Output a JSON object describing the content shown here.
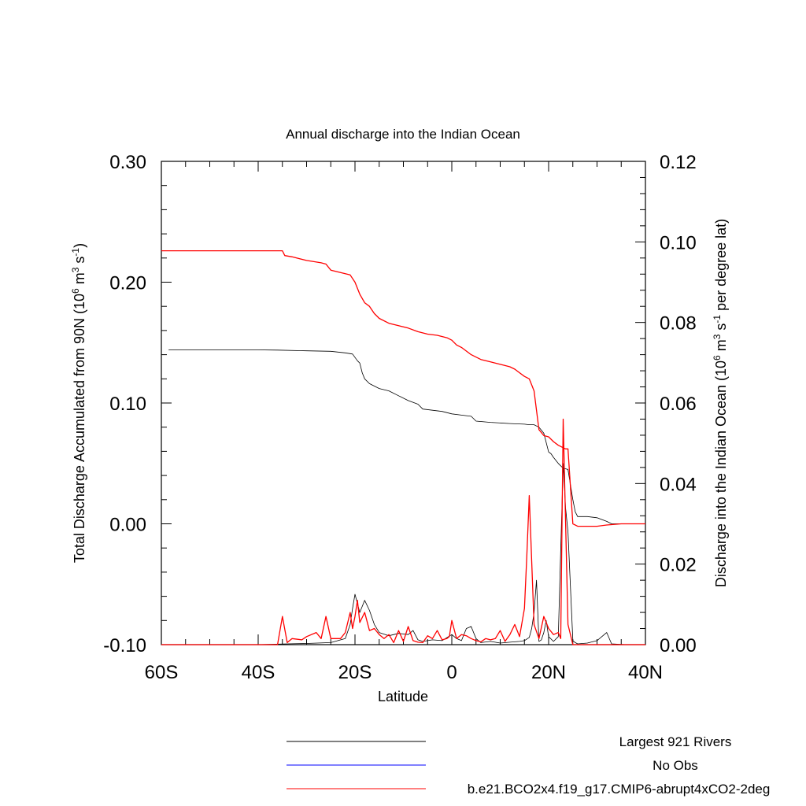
{
  "chart_data": {
    "type": "line",
    "title": "Annual discharge into the Indian Ocean",
    "xlabel": "Latitude",
    "ylabel_left": {
      "text": "Total Discharge Accumulated from 90N (10",
      "sup1": "6",
      "mid": " m",
      "sup2": "3",
      "mid2": " s",
      "sup3": "-1",
      "end": ")"
    },
    "ylabel_right": {
      "text": "Discharge into the Indian Ocean (10",
      "sup1": "6",
      "mid": " m",
      "sup2": "3",
      "mid2": " s",
      "sup3": "-1",
      "end": " per degree lat)"
    },
    "xlim": [
      -60,
      40
    ],
    "ylim_left": [
      -0.1,
      0.3
    ],
    "ylim_right": [
      0.0,
      0.12
    ],
    "x_ticks": [
      {
        "value": -60,
        "label": "60S"
      },
      {
        "value": -40,
        "label": "40S"
      },
      {
        "value": -20,
        "label": "20S"
      },
      {
        "value": 0,
        "label": "0"
      },
      {
        "value": 20,
        "label": "20N"
      },
      {
        "value": 40,
        "label": "40N"
      }
    ],
    "y_ticks_left": [
      {
        "value": -0.1,
        "label": "-0.10"
      },
      {
        "value": 0.0,
        "label": "0.00"
      },
      {
        "value": 0.1,
        "label": "0.10"
      },
      {
        "value": 0.2,
        "label": "0.20"
      },
      {
        "value": 0.3,
        "label": "0.30"
      }
    ],
    "y_ticks_right": [
      {
        "value": 0.0,
        "label": "0.00"
      },
      {
        "value": 0.02,
        "label": "0.02"
      },
      {
        "value": 0.04,
        "label": "0.04"
      },
      {
        "value": 0.06,
        "label": "0.06"
      },
      {
        "value": 0.08,
        "label": "0.08"
      },
      {
        "value": 0.1,
        "label": "0.10"
      },
      {
        "value": 0.12,
        "label": "0.12"
      }
    ],
    "series": [
      {
        "name": "Largest 921 Rivers",
        "color": "#000000",
        "axis": "left",
        "kind": "accumulated",
        "x": [
          -58.5,
          -40,
          -36,
          -30,
          -25,
          -22,
          -20.5,
          -19.5,
          -19,
          -18.5,
          -18,
          -17,
          -15,
          -13,
          -11,
          -9,
          -7,
          -6,
          -4,
          -2,
          0,
          2,
          4,
          5,
          8,
          12,
          15,
          16,
          17,
          18,
          19,
          20,
          20.5,
          21,
          22,
          23,
          24,
          25,
          25.5,
          26,
          28,
          30,
          32,
          33,
          36,
          40
        ],
        "values": [
          0.144,
          0.144,
          0.1438,
          0.1432,
          0.1428,
          0.1415,
          0.1405,
          0.135,
          0.133,
          0.125,
          0.12,
          0.116,
          0.112,
          0.11,
          0.106,
          0.102,
          0.099,
          0.095,
          0.094,
          0.093,
          0.091,
          0.09,
          0.089,
          0.085,
          0.084,
          0.083,
          0.0825,
          0.082,
          0.082,
          0.08,
          0.075,
          0.0595,
          0.058,
          0.055,
          0.05,
          0.046,
          0.045,
          0.02,
          0.01,
          0.006,
          0.006,
          0.005,
          0.002,
          0.0,
          0.0,
          0.0
        ]
      },
      {
        "name": "Largest 921 Rivers",
        "color": "#000000",
        "axis": "right",
        "kind": "per-degree",
        "x": [
          -58.5,
          -40,
          -34,
          -30,
          -25,
          -22,
          -21,
          -20.5,
          -20,
          -19,
          -18.5,
          -18,
          -17,
          -16,
          -15,
          -13,
          -11,
          -9,
          -8,
          -7,
          -6,
          -4,
          -2,
          0,
          1,
          2,
          3,
          4,
          5,
          6,
          8,
          10,
          12,
          14,
          15,
          16,
          16.5,
          17,
          17.5,
          18,
          18.5,
          19,
          19.5,
          20,
          21,
          22,
          23,
          23.5,
          24,
          25,
          25.5,
          26,
          28,
          30,
          31,
          32,
          33,
          36,
          40
        ],
        "values": [
          0,
          0,
          0.0002,
          0.0003,
          0.0005,
          0.0015,
          0.005,
          0.009,
          0.0125,
          0.008,
          0.0095,
          0.011,
          0.0085,
          0.005,
          0.003,
          0.0022,
          0.0028,
          0.0025,
          0.0035,
          0.0012,
          0.0008,
          0.0012,
          0.001,
          0.0025,
          0.0015,
          0.001,
          0.004,
          0.0045,
          0.0015,
          0.0005,
          0.0008,
          0.0004,
          0.0006,
          0.0008,
          0.001,
          0.0018,
          0.004,
          0.008,
          0.016,
          0.0008,
          0.0012,
          0.003,
          0.006,
          0.002,
          0.0008,
          0.002,
          0.045,
          0.034,
          0.028,
          0.001,
          0.0005,
          0.0002,
          0.0004,
          0.001,
          0.002,
          0.003,
          0.0002,
          0.0,
          0.0
        ]
      },
      {
        "name": "No Obs",
        "color": "#0000ff",
        "axis": "left",
        "kind": "accumulated",
        "x": [],
        "values": []
      },
      {
        "name": "b.e21.BCO2x4.f19_g17.CMIP6-abrupt4xCO2-2deg",
        "color": "#ff0000",
        "axis": "left",
        "kind": "accumulated",
        "x": [
          -60,
          -35,
          -34.5,
          -33,
          -30,
          -27,
          -26,
          -25,
          -23,
          -21,
          -20,
          -19.5,
          -19,
          -18,
          -17,
          -16,
          -15,
          -13,
          -11,
          -9,
          -7,
          -5,
          -3,
          -1,
          0,
          1,
          2,
          4,
          6,
          8,
          10,
          11,
          12,
          13,
          14,
          15,
          16,
          16.5,
          17,
          18,
          19,
          20,
          21,
          22,
          23,
          23.5,
          24,
          25,
          26,
          28,
          30,
          32,
          35,
          40
        ],
        "values": [
          0.226,
          0.226,
          0.222,
          0.221,
          0.218,
          0.216,
          0.215,
          0.21,
          0.208,
          0.206,
          0.2,
          0.195,
          0.19,
          0.183,
          0.18,
          0.174,
          0.17,
          0.166,
          0.164,
          0.162,
          0.159,
          0.157,
          0.156,
          0.154,
          0.152,
          0.148,
          0.146,
          0.14,
          0.136,
          0.134,
          0.132,
          0.131,
          0.13,
          0.128,
          0.125,
          0.122,
          0.12,
          0.115,
          0.11,
          0.078,
          0.073,
          0.072,
          0.068,
          0.065,
          0.063,
          0.062,
          0.062,
          0.0,
          -0.002,
          -0.002,
          -0.002,
          -0.001,
          0.0,
          0.0
        ]
      },
      {
        "name": "b.e21.BCO2x4.f19_g17.CMIP6-abrupt4xCO2-2deg",
        "color": "#ff0000",
        "axis": "right",
        "kind": "per-degree",
        "x": [
          -60,
          -36,
          -35,
          -34,
          -33,
          -31,
          -30,
          -28,
          -27,
          -26,
          -25,
          -23,
          -22,
          -21,
          -20.5,
          -20,
          -19.5,
          -19,
          -18,
          -17,
          -16,
          -15,
          -14,
          -13,
          -12,
          -11,
          -10,
          -9,
          -8,
          -7,
          -6,
          -5,
          -4,
          -3,
          -2,
          -1,
          -0.5,
          0,
          1,
          2,
          3,
          4,
          5,
          6,
          7,
          8,
          9,
          10,
          11,
          12,
          13,
          14,
          15,
          15.5,
          16,
          17,
          18,
          19,
          20,
          21,
          22,
          22.5,
          23,
          24,
          25,
          26,
          28,
          30,
          35,
          40
        ],
        "values": [
          0,
          0,
          0.007,
          0.0005,
          0.0015,
          0.0012,
          0.002,
          0.003,
          0.0015,
          0.007,
          0.0015,
          0.0015,
          0.003,
          0.008,
          0.004,
          0.007,
          0.011,
          0.0055,
          0.008,
          0.0035,
          0.004,
          0.0025,
          0.0015,
          0.0025,
          0.0005,
          0.0035,
          0.0008,
          0.0045,
          0.001,
          0.0006,
          0.0005,
          0.0022,
          0.0015,
          0.0035,
          0.0012,
          0.0015,
          0.002,
          0.006,
          0.0015,
          0.0025,
          0.0022,
          0.0015,
          0.001,
          0.0007,
          0.0015,
          0.0012,
          0.0015,
          0.0035,
          0.0008,
          0.0025,
          0.005,
          0.002,
          0.009,
          0.022,
          0.037,
          0.005,
          0.0015,
          0.007,
          0.004,
          0.0025,
          0.003,
          0.0015,
          0.056,
          0.005,
          0.0,
          0.0,
          0.0,
          0.0,
          0.0,
          0.0
        ]
      }
    ],
    "legend": {
      "placement": "bottom-right",
      "entries": [
        {
          "label": "Largest 921 Rivers",
          "color": "#000000"
        },
        {
          "label": "No Obs",
          "color": "#0000ff"
        },
        {
          "label": "b.e21.BCO2x4.f19_g17.CMIP6-abrupt4xCO2-2deg",
          "color": "#ff0000"
        }
      ]
    },
    "grid": false
  }
}
